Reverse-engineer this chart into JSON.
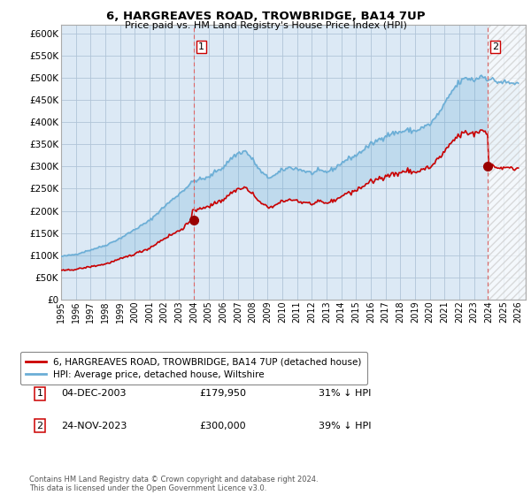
{
  "title": "6, HARGREAVES ROAD, TROWBRIDGE, BA14 7UP",
  "subtitle": "Price paid vs. HM Land Registry's House Price Index (HPI)",
  "ylim": [
    0,
    620000
  ],
  "xlim_start": 1995.0,
  "xlim_end": 2026.5,
  "hpi_color": "#6baed6",
  "price_color": "#cc0000",
  "purchase1_date": 2004.0,
  "purchase1_price": 179950,
  "purchase2_date": 2023.92,
  "purchase2_price": 300000,
  "legend_house": "6, HARGREAVES ROAD, TROWBRIDGE, BA14 7UP (detached house)",
  "legend_hpi": "HPI: Average price, detached house, Wiltshire",
  "note1_label": "1",
  "note1_date": "04-DEC-2003",
  "note1_price": "£179,950",
  "note1_pct": "31% ↓ HPI",
  "note2_label": "2",
  "note2_date": "24-NOV-2023",
  "note2_price": "£300,000",
  "note2_pct": "39% ↓ HPI",
  "footer": "Contains HM Land Registry data © Crown copyright and database right 2024.\nThis data is licensed under the Open Government Licence v3.0.",
  "background_color": "#ffffff",
  "plot_bg_color": "#dce9f5",
  "grid_color": "#b0c4d8",
  "vline_color": "#dd6666"
}
